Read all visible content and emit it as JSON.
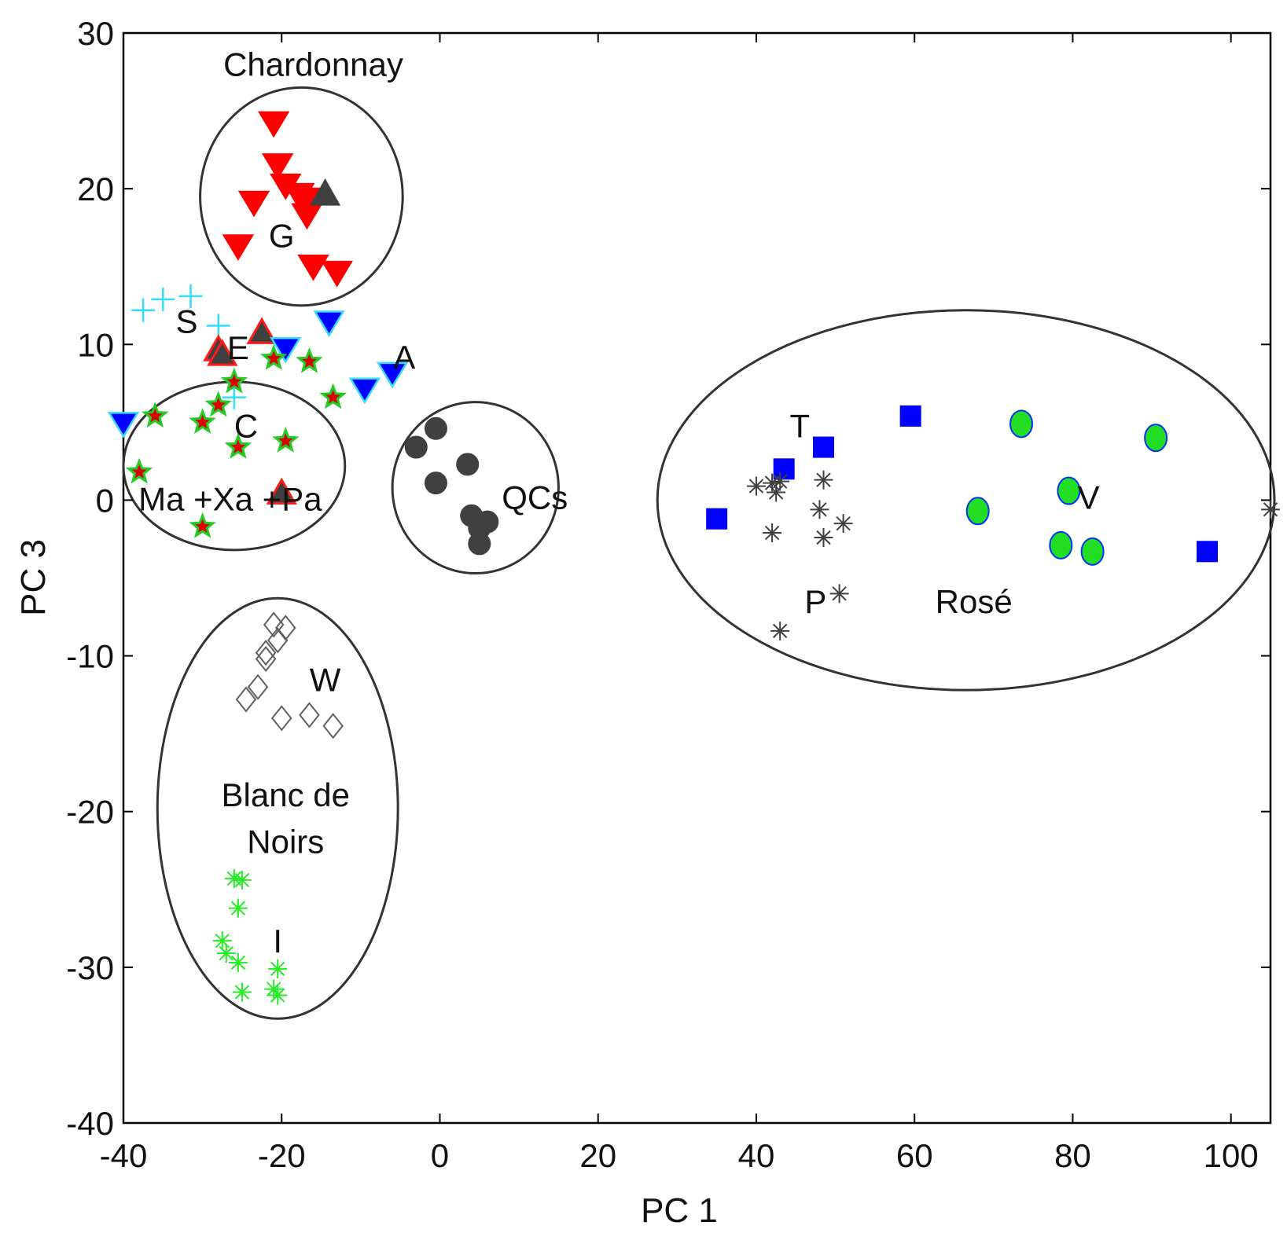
{
  "chart_data": {
    "type": "scatter",
    "title": "",
    "xlabel": "PC 1",
    "ylabel": "PC 3",
    "xlim": [
      -40,
      105
    ],
    "ylim": [
      -40,
      30
    ],
    "xticks": [
      -40,
      -20,
      0,
      20,
      40,
      60,
      80,
      100
    ],
    "yticks": [
      -40,
      -30,
      -20,
      -10,
      0,
      10,
      20,
      30
    ],
    "grid": false,
    "series": [
      {
        "name": "Chardonnay",
        "marker": "triangle-down",
        "color": "#ff0000",
        "edge": "#ff0000",
        "points": [
          [
            -21,
            24.2
          ],
          [
            -20.5,
            21.5
          ],
          [
            -19.5,
            20.2
          ],
          [
            -17.8,
            19.6
          ],
          [
            -16.5,
            19.3
          ],
          [
            -16.8,
            18.3
          ],
          [
            -23.5,
            19.1
          ],
          [
            -25.5,
            16.3
          ],
          [
            -16,
            15
          ],
          [
            -13,
            14.6
          ]
        ]
      },
      {
        "name": "G",
        "marker": "triangle-up",
        "color": "#404040",
        "edge": "#404040",
        "points": [
          [
            -14.5,
            19.7
          ]
        ]
      },
      {
        "name": "S",
        "marker": "plus",
        "color": "#33ddff",
        "edge": "#33ddff",
        "points": [
          [
            -37.5,
            12.2
          ],
          [
            -35,
            12.9
          ],
          [
            -31.5,
            13.1
          ],
          [
            -28,
            11.2
          ],
          [
            -26,
            6.6
          ]
        ]
      },
      {
        "name": "E",
        "marker": "triangle-up",
        "color": "#404040",
        "edge": "#ff1a1a",
        "points": [
          [
            -28,
            9.7
          ],
          [
            -27.5,
            9.4
          ],
          [
            -22.5,
            10.8
          ],
          [
            -20,
            0.5
          ]
        ]
      },
      {
        "name": "A",
        "marker": "triangle-down",
        "color": "#0000ff",
        "edge": "#33ddff",
        "points": [
          [
            -19.5,
            9.7
          ],
          [
            -14,
            11.4
          ],
          [
            -9.5,
            7.1
          ],
          [
            -6,
            8.1
          ],
          [
            -40,
            4.9
          ]
        ]
      },
      {
        "name": "C",
        "marker": "star",
        "color": "#dd0000",
        "edge": "#22cc22",
        "points": [
          [
            -36,
            5.4
          ],
          [
            -30,
            5
          ],
          [
            -28,
            6.1
          ],
          [
            -26,
            7.6
          ],
          [
            -21,
            9.1
          ],
          [
            -16.5,
            8.9
          ],
          [
            -13.5,
            6.6
          ],
          [
            -25.5,
            3.4
          ],
          [
            -19.5,
            3.8
          ],
          [
            -38,
            1.8
          ],
          [
            -30,
            -1.7
          ]
        ]
      },
      {
        "name": "QCs",
        "marker": "circle",
        "color": "#404040",
        "edge": "#404040",
        "points": [
          [
            -3,
            3.4
          ],
          [
            -0.5,
            4.6
          ],
          [
            -0.5,
            1.1
          ],
          [
            3.5,
            2.3
          ],
          [
            4,
            -1
          ],
          [
            5,
            -1.8
          ],
          [
            6,
            -1.4
          ],
          [
            5,
            -2.8
          ]
        ]
      },
      {
        "name": "T",
        "marker": "square",
        "color": "#0000ff",
        "edge": "#0000ff",
        "points": [
          [
            35,
            -1.2
          ],
          [
            43.5,
            2
          ],
          [
            48.5,
            3.4
          ],
          [
            59.5,
            5.4
          ],
          [
            97,
            -3.3
          ]
        ]
      },
      {
        "name": "P",
        "marker": "asterisk",
        "color": "#404040",
        "edge": "#404040",
        "points": [
          [
            40,
            0.9
          ],
          [
            42,
            1.1
          ],
          [
            42.5,
            0.5
          ],
          [
            43,
            1.2
          ],
          [
            48.5,
            1.3
          ],
          [
            48,
            -0.6
          ],
          [
            51,
            -1.5
          ],
          [
            42,
            -2.1
          ],
          [
            48.5,
            -2.4
          ],
          [
            50.5,
            -6
          ],
          [
            43,
            -8.4
          ],
          [
            105,
            -0.6
          ]
        ]
      },
      {
        "name": "V",
        "marker": "ellipse",
        "color": "#22dd22",
        "edge": "#0033ff",
        "points": [
          [
            73.5,
            4.9
          ],
          [
            90.5,
            4
          ],
          [
            79.5,
            0.6
          ],
          [
            68,
            -0.7
          ],
          [
            78.5,
            -2.9
          ],
          [
            82.5,
            -3.3
          ]
        ]
      },
      {
        "name": "W",
        "marker": "diamond",
        "color": "none",
        "edge": "#606060",
        "points": [
          [
            -21,
            -8
          ],
          [
            -19.5,
            -8.2
          ],
          [
            -20.5,
            -9
          ],
          [
            -22,
            -9.8
          ],
          [
            -22,
            -10.2
          ],
          [
            -23,
            -12
          ],
          [
            -24.5,
            -12.8
          ],
          [
            -20,
            -14
          ],
          [
            -16.5,
            -13.8
          ],
          [
            -13.5,
            -14.5
          ]
        ]
      },
      {
        "name": "I",
        "marker": "asterisk",
        "color": "#22ee22",
        "edge": "#22ee22",
        "points": [
          [
            -26,
            -24.3
          ],
          [
            -25,
            -24.4
          ],
          [
            -25.5,
            -26.2
          ],
          [
            -27.5,
            -28.3
          ],
          [
            -27,
            -29.1
          ],
          [
            -25.5,
            -29.7
          ],
          [
            -25,
            -31.6
          ],
          [
            -20.5,
            -30.1
          ],
          [
            -21,
            -31.4
          ],
          [
            -20.5,
            -31.8
          ]
        ]
      }
    ],
    "ellipses": [
      {
        "name": "Chardonnay",
        "cx": -17.5,
        "cy": 19.5,
        "rx": 12.8,
        "ry": 7
      },
      {
        "name": "C",
        "cx": -26,
        "cy": 2.2,
        "rx": 14,
        "ry": 5.4
      },
      {
        "name": "QCs",
        "cx": 4.5,
        "cy": 0.8,
        "rx": 10.5,
        "ry": 5.5
      },
      {
        "name": "Rosé",
        "cx": 66.5,
        "cy": 0,
        "rx": 39,
        "ry": 12.2
      },
      {
        "name": "Blanc de Noirs",
        "cx": -20.5,
        "cy": -19.8,
        "rx": 15.2,
        "ry": 13.5
      }
    ],
    "annotations": [
      {
        "text": "Chardonnay",
        "x": -16,
        "y": 28
      },
      {
        "text": "G",
        "x": -20,
        "y": 17
      },
      {
        "text": "S",
        "x": -32,
        "y": 11.5
      },
      {
        "text": "E",
        "x": -25.5,
        "y": 9.8
      },
      {
        "text": "A",
        "x": -4.5,
        "y": 9.2
      },
      {
        "text": "C",
        "x": -24.5,
        "y": 4.8
      },
      {
        "text": "Ma +Xa +Pa",
        "x": -26.5,
        "y": 0.1
      },
      {
        "text": "QCs",
        "x": 12,
        "y": 0.2
      },
      {
        "text": "T",
        "x": 45.5,
        "y": 4.8
      },
      {
        "text": "V",
        "x": 82,
        "y": 0.2
      },
      {
        "text": "P",
        "x": 47.5,
        "y": -6.5
      },
      {
        "text": "Rosé",
        "x": 67.5,
        "y": -6.5
      },
      {
        "text": "W",
        "x": -14.5,
        "y": -11.5
      },
      {
        "text": "Blanc de",
        "x": -19.5,
        "y": -18.9
      },
      {
        "text": "Noirs",
        "x": -19.5,
        "y": -21.9
      },
      {
        "text": "I",
        "x": -20.5,
        "y": -28.3
      }
    ]
  }
}
